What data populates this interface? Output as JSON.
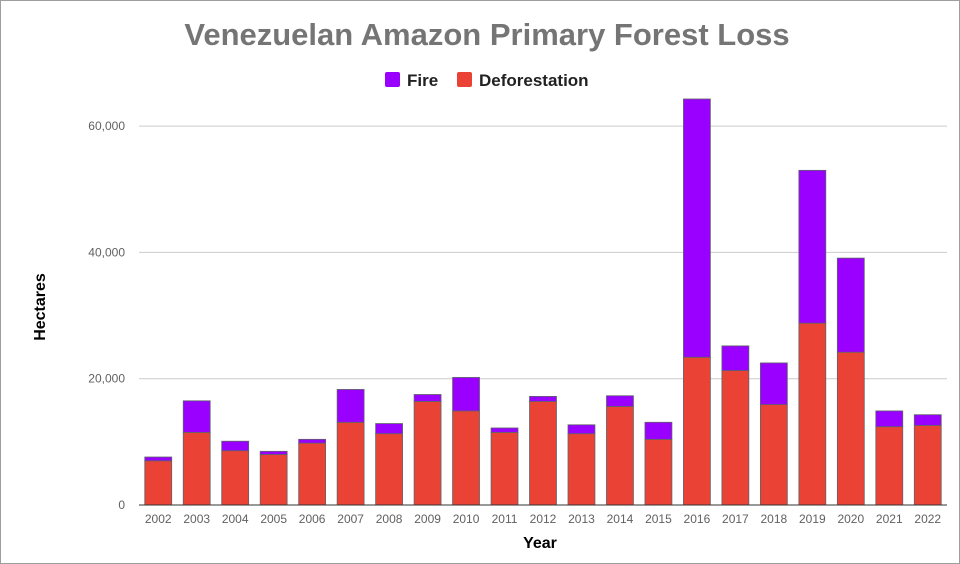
{
  "chart_data": {
    "type": "bar",
    "stacked": true,
    "title": "Venezuelan Amazon Primary Forest Loss",
    "xlabel": "Year",
    "ylabel": "Hectares",
    "ylim": [
      0,
      70000
    ],
    "yticks": [
      0,
      20000,
      40000,
      60000
    ],
    "ytick_labels": [
      "0",
      "20,000",
      "40,000",
      "60,000"
    ],
    "grid": true,
    "legend_position": "top",
    "categories": [
      "2002",
      "2003",
      "2004",
      "2005",
      "2006",
      "2007",
      "2008",
      "2009",
      "2010",
      "2011",
      "2012",
      "2013",
      "2014",
      "2015",
      "2016",
      "2017",
      "2018",
      "2019",
      "2020",
      "2021",
      "2022"
    ],
    "series": [
      {
        "name": "Deforestation",
        "color": "#ea4335",
        "values": [
          7000,
          11500,
          8600,
          8000,
          9800,
          13100,
          11300,
          16400,
          14900,
          11500,
          16400,
          11300,
          15600,
          10400,
          23400,
          21300,
          15900,
          28800,
          24200,
          12400,
          12600
        ]
      },
      {
        "name": "Fire",
        "color": "#9900ff",
        "values": [
          600,
          5000,
          1500,
          500,
          600,
          5200,
          1600,
          1100,
          5300,
          700,
          800,
          1400,
          1700,
          2700,
          40900,
          3900,
          6600,
          24200,
          14900,
          2500,
          1700
        ]
      }
    ]
  }
}
